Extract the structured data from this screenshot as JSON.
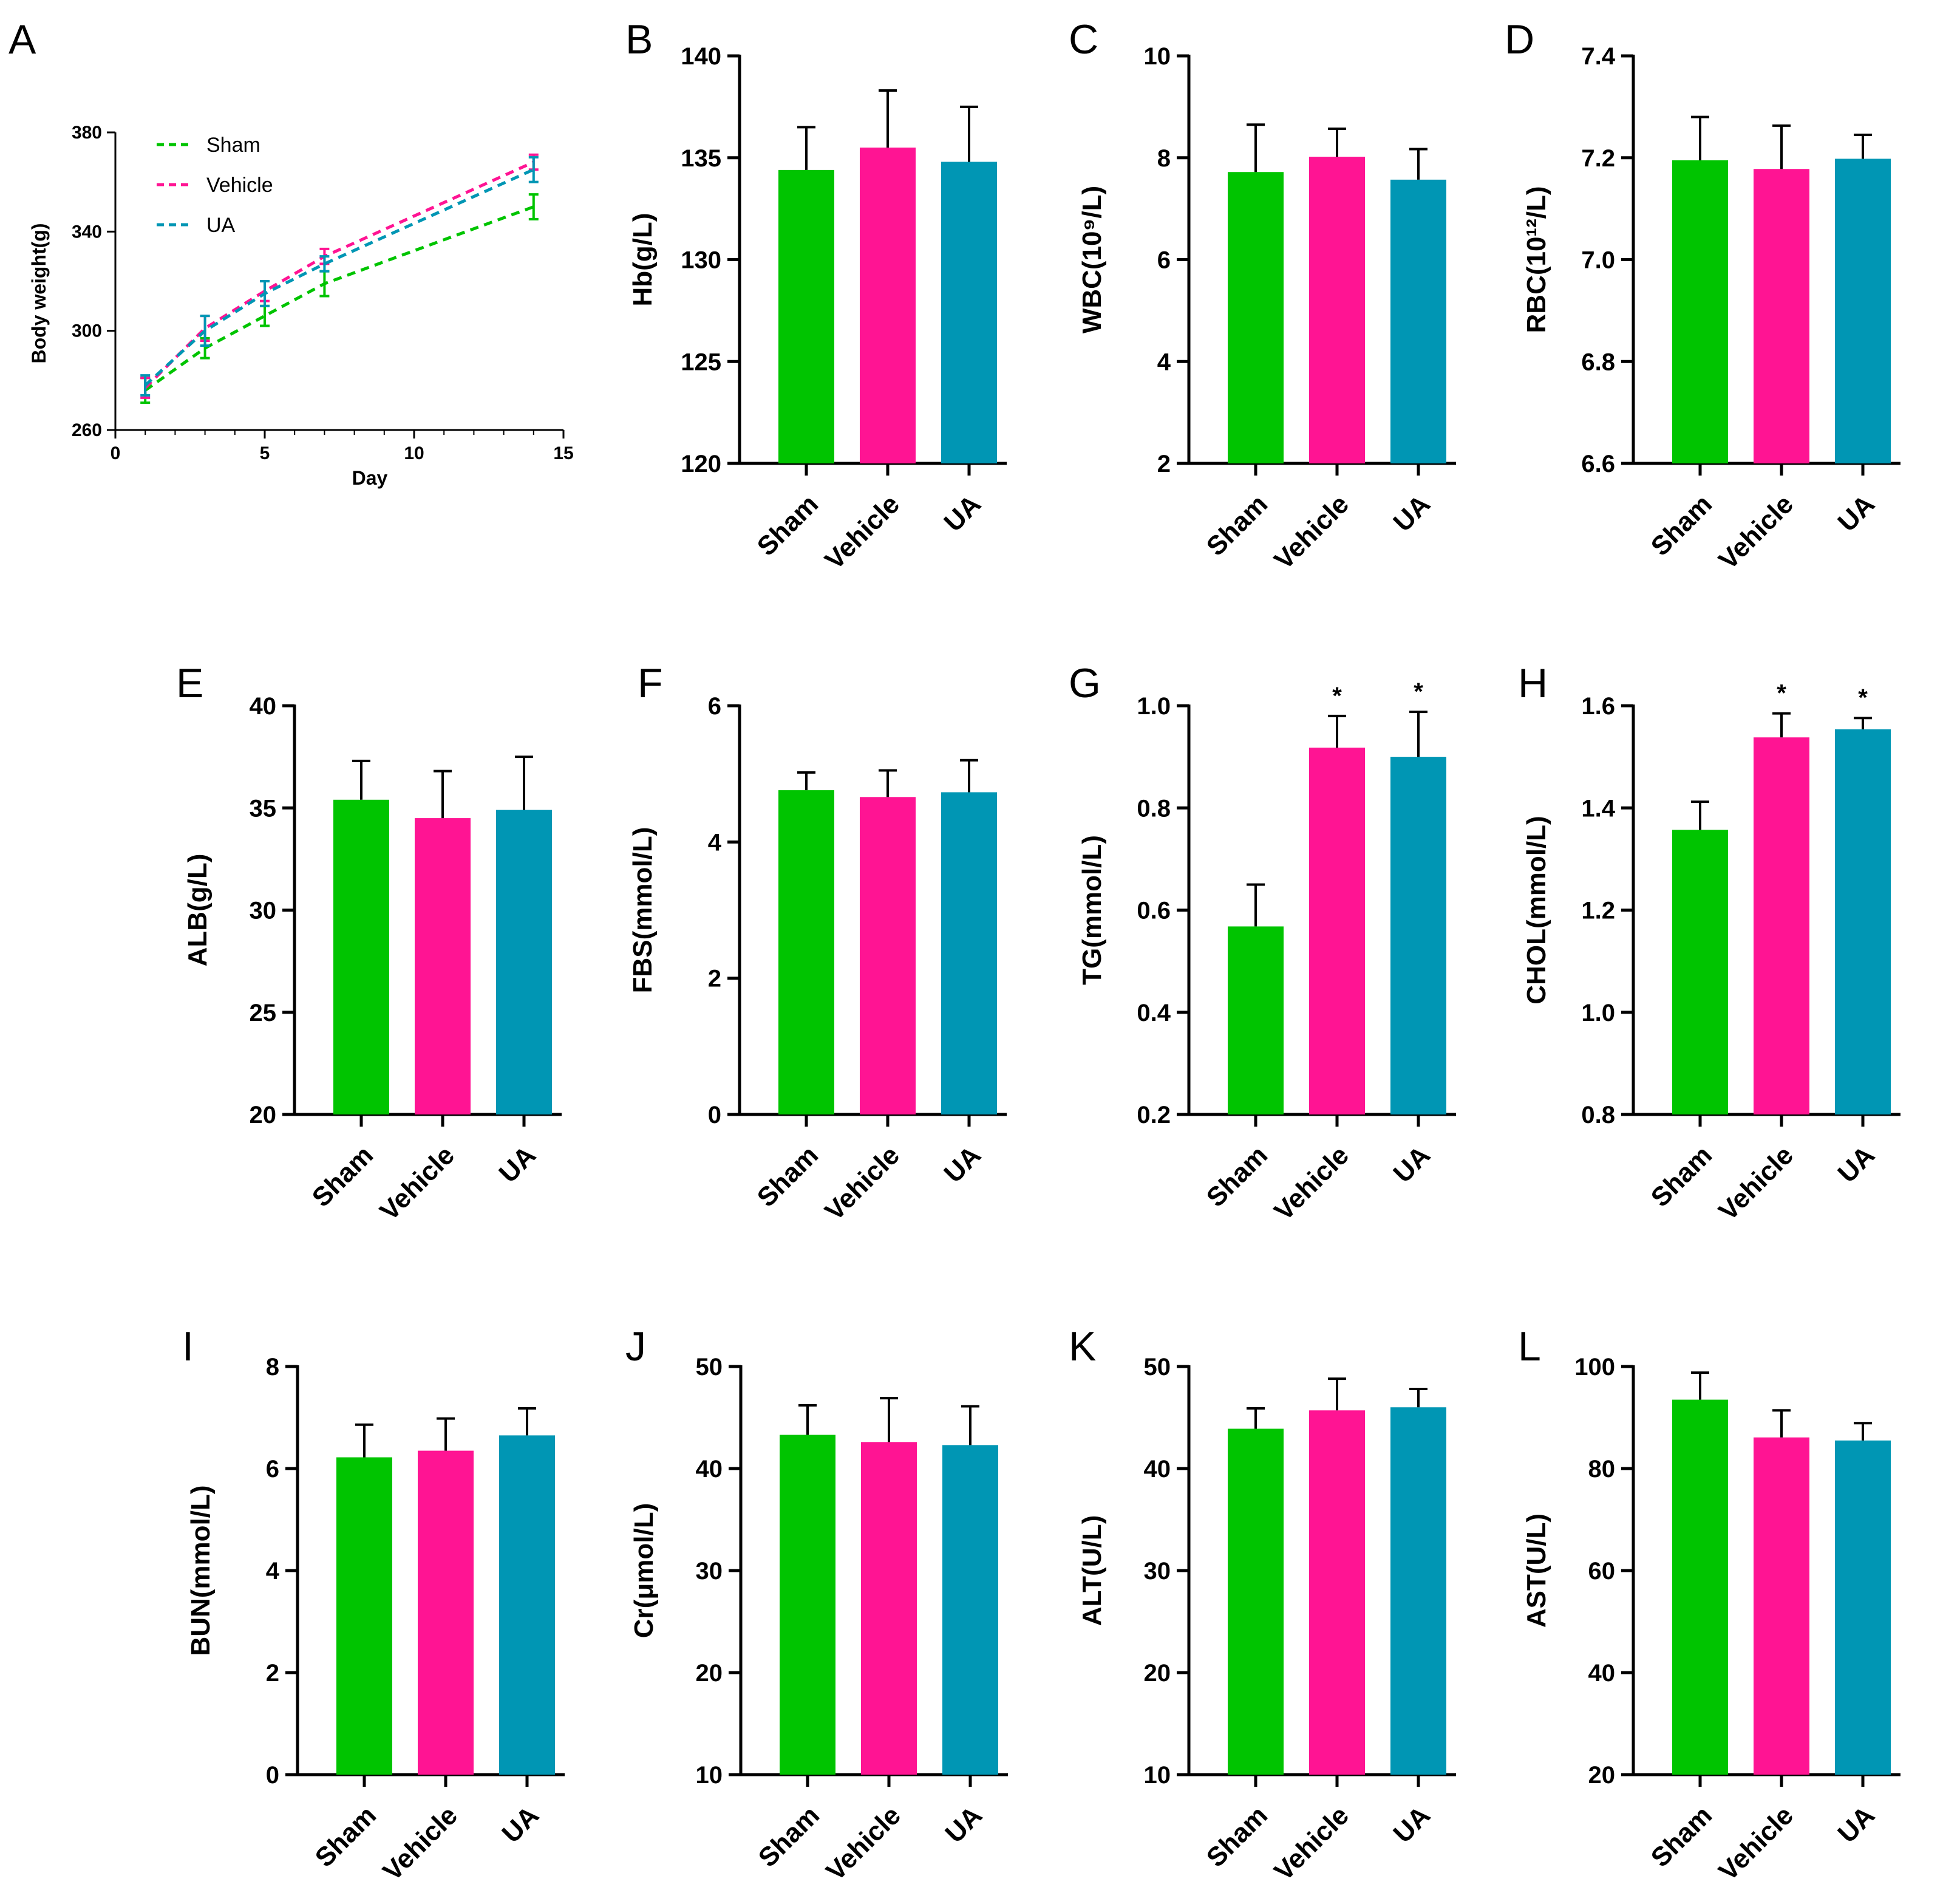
{
  "colors": {
    "sham": "#00c400",
    "vehicle": "#ff1493",
    "ua": "#0096b4"
  },
  "chart_data": [
    {
      "panel": "A",
      "type": "line",
      "xlabel": "Day",
      "ylabel": "Body weight(g)",
      "xlim": [
        0,
        15
      ],
      "ylim": [
        260,
        380
      ],
      "xticks": [
        "0",
        "5",
        "10",
        "15"
      ],
      "yticks": [
        "260",
        "300",
        "340",
        "380"
      ],
      "legend_position": "top-left",
      "x": [
        1,
        3,
        5,
        7,
        14
      ],
      "series": [
        {
          "name": "Sham",
          "values": [
            276,
            293,
            306,
            319,
            350
          ],
          "errors": [
            5,
            4,
            4,
            5,
            5
          ]
        },
        {
          "name": "Vehicle",
          "values": [
            277,
            301,
            316,
            330,
            368
          ],
          "errors": [
            4,
            5,
            4,
            3,
            3
          ]
        },
        {
          "name": "UA",
          "values": [
            278,
            300,
            315,
            327,
            365
          ],
          "errors": [
            4,
            6,
            5,
            3,
            5
          ]
        }
      ]
    },
    {
      "panel": "B",
      "type": "bar",
      "ylabel": "Hb(g/L)",
      "ylim": [
        120,
        140
      ],
      "yticks": [
        "120",
        "125",
        "130",
        "135",
        "140"
      ],
      "categories": [
        "Sham",
        "Vehicle",
        "UA"
      ],
      "values": [
        134.4,
        135.5,
        134.8
      ],
      "errors": [
        2.1,
        2.8,
        2.7
      ],
      "significance": [
        "",
        "",
        ""
      ]
    },
    {
      "panel": "C",
      "type": "bar",
      "ylabel": "WBC(10⁹/L)",
      "ylim": [
        2,
        10
      ],
      "yticks": [
        "2",
        "4",
        "6",
        "8",
        "10"
      ],
      "categories": [
        "Sham",
        "Vehicle",
        "UA"
      ],
      "values": [
        7.72,
        8.02,
        7.57
      ],
      "errors": [
        0.93,
        0.55,
        0.6
      ],
      "significance": [
        "",
        "",
        ""
      ]
    },
    {
      "panel": "D",
      "type": "bar",
      "ylabel": "RBC(10¹²/L)",
      "ylim": [
        6.6,
        7.4
      ],
      "yticks": [
        "6.6",
        "6.8",
        "7.0",
        "7.2",
        "7.4"
      ],
      "categories": [
        "Sham",
        "Vehicle",
        "UA"
      ],
      "values": [
        7.195,
        7.178,
        7.198
      ],
      "errors": [
        0.085,
        0.085,
        0.047
      ],
      "significance": [
        "",
        "",
        ""
      ]
    },
    {
      "panel": "E",
      "type": "bar",
      "ylabel": "ALB(g/L)",
      "ylim": [
        20,
        40
      ],
      "yticks": [
        "20",
        "25",
        "30",
        "35",
        "40"
      ],
      "categories": [
        "Sham",
        "Vehicle",
        "UA"
      ],
      "values": [
        35.4,
        34.5,
        34.9
      ],
      "errors": [
        1.9,
        2.3,
        2.6
      ],
      "significance": [
        "",
        "",
        ""
      ]
    },
    {
      "panel": "F",
      "type": "bar",
      "ylabel": "FBS(mmol/L)",
      "ylim": [
        0,
        6
      ],
      "yticks": [
        "0",
        "2",
        "4",
        "6"
      ],
      "categories": [
        "Sham",
        "Vehicle",
        "UA"
      ],
      "values": [
        4.76,
        4.66,
        4.73
      ],
      "errors": [
        0.26,
        0.39,
        0.47
      ],
      "significance": [
        "",
        "",
        ""
      ]
    },
    {
      "panel": "G",
      "type": "bar",
      "ylabel": "TG(mmol/L)",
      "ylim": [
        0.2,
        1.0
      ],
      "yticks": [
        "0.2",
        "0.4",
        "0.6",
        "0.8",
        "1.0"
      ],
      "categories": [
        "Sham",
        "Vehicle",
        "UA"
      ],
      "values": [
        0.568,
        0.918,
        0.9
      ],
      "errors": [
        0.082,
        0.062,
        0.088
      ],
      "significance": [
        "",
        "*",
        "*"
      ]
    },
    {
      "panel": "H",
      "type": "bar",
      "ylabel": "CHOL(mmol/L)",
      "ylim": [
        0.8,
        1.6
      ],
      "yticks": [
        "0.8",
        "1.0",
        "1.2",
        "1.4",
        "1.6"
      ],
      "categories": [
        "Sham",
        "Vehicle",
        "UA"
      ],
      "values": [
        1.357,
        1.538,
        1.554
      ],
      "errors": [
        0.055,
        0.047,
        0.022
      ],
      "significance": [
        "",
        "*",
        "*"
      ]
    },
    {
      "panel": "I",
      "type": "bar",
      "ylabel": "BUN(mmol/L)",
      "ylim": [
        0,
        8
      ],
      "yticks": [
        "0",
        "2",
        "4",
        "6",
        "8"
      ],
      "categories": [
        "Sham",
        "Vehicle",
        "UA"
      ],
      "values": [
        6.22,
        6.35,
        6.65
      ],
      "errors": [
        0.64,
        0.63,
        0.53
      ],
      "significance": [
        "",
        "",
        ""
      ]
    },
    {
      "panel": "J",
      "type": "bar",
      "ylabel": "Cr(μmol/L)",
      "ylim": [
        10,
        50
      ],
      "yticks": [
        "10",
        "20",
        "30",
        "40",
        "50"
      ],
      "categories": [
        "Sham",
        "Vehicle",
        "UA"
      ],
      "values": [
        43.3,
        42.6,
        42.3
      ],
      "errors": [
        2.9,
        4.3,
        3.8
      ],
      "significance": [
        "",
        "",
        ""
      ]
    },
    {
      "panel": "K",
      "type": "bar",
      "ylabel": "ALT(U/L)",
      "ylim": [
        10,
        50
      ],
      "yticks": [
        "10",
        "20",
        "30",
        "40",
        "50"
      ],
      "categories": [
        "Sham",
        "Vehicle",
        "UA"
      ],
      "values": [
        43.9,
        45.7,
        46.0
      ],
      "errors": [
        2.0,
        3.1,
        1.8
      ],
      "significance": [
        "",
        "",
        ""
      ]
    },
    {
      "panel": "L",
      "type": "bar",
      "ylabel": "AST(U/L)",
      "ylim": [
        20,
        100
      ],
      "yticks": [
        "20",
        "40",
        "60",
        "80",
        "100"
      ],
      "categories": [
        "Sham",
        "Vehicle",
        "UA"
      ],
      "values": [
        93.5,
        86.1,
        85.5
      ],
      "errors": [
        5.3,
        5.3,
        3.4
      ],
      "significance": [
        "",
        "",
        ""
      ]
    }
  ]
}
